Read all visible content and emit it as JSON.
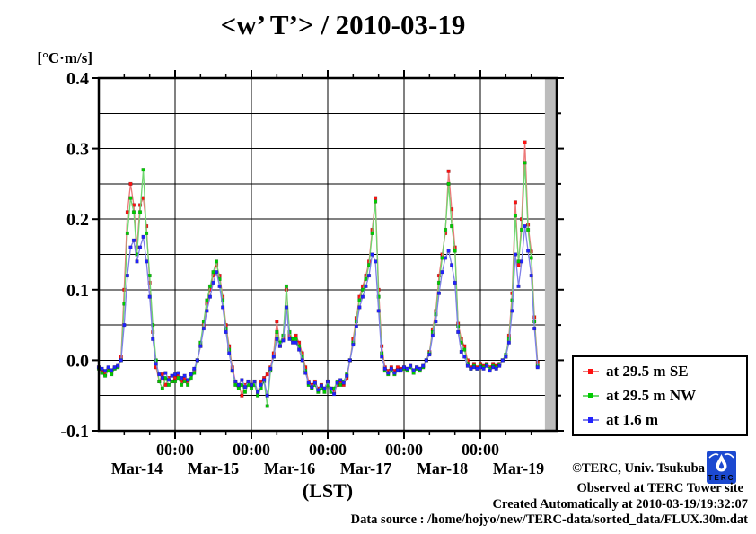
{
  "title": "<w’ T’> / 2010-03-19",
  "chart_data": {
    "type": "line",
    "title": "<w’ T’> / 2010-03-19",
    "unit_label": "[°C·m/s]",
    "xlabel": "(LST)",
    "ylim": [
      -0.1,
      0.4
    ],
    "y_tick_step": 0.1,
    "y_grid_step": 0.05,
    "y_tick_labels": [
      {
        "value": 0.4,
        "label": "0.4"
      },
      {
        "value": 0.3,
        "label": "0.3"
      },
      {
        "value": 0.2,
        "label": "0.2"
      },
      {
        "value": 0.1,
        "label": "0.1"
      },
      {
        "value": 0.0,
        "label": "0.0"
      },
      {
        "value": -0.1,
        "label": "-0.1"
      }
    ],
    "x_hour_span": 144,
    "x_start": "Mar-14 00:00",
    "x_step_hours": 1,
    "x_minor_tick_hours": 8,
    "x_time_ticks": [
      {
        "hour": 24,
        "label": "00:00"
      },
      {
        "hour": 48,
        "label": "00:00"
      },
      {
        "hour": 72,
        "label": "00:00"
      },
      {
        "hour": 96,
        "label": "00:00"
      },
      {
        "hour": 120,
        "label": "00:00"
      }
    ],
    "x_day_labels": [
      {
        "hour": 12,
        "label": "Mar-14"
      },
      {
        "hour": 36,
        "label": "Mar-15"
      },
      {
        "hour": 60,
        "label": "Mar-16"
      },
      {
        "hour": 84,
        "label": "Mar-17"
      },
      {
        "hour": 108,
        "label": "Mar-18"
      },
      {
        "hour": 132,
        "label": "Mar-19"
      }
    ],
    "shade_start_hour": 140.3,
    "shade_color": "#bcbcbc",
    "grid_color": "#000000",
    "series": [
      {
        "label": "at 29.5 m SE",
        "color": "#ff1111",
        "line_color": "#ec7878",
        "values": [
          -0.01,
          -0.015,
          -0.02,
          -0.012,
          -0.018,
          -0.01,
          -0.008,
          0.005,
          0.1,
          0.21,
          0.25,
          0.22,
          0.16,
          0.22,
          0.23,
          0.19,
          0.11,
          0.04,
          -0.01,
          -0.03,
          -0.02,
          -0.035,
          -0.025,
          -0.03,
          -0.025,
          -0.02,
          -0.03,
          -0.025,
          -0.03,
          -0.02,
          -0.015,
          0.0,
          0.02,
          0.05,
          0.08,
          0.1,
          0.12,
          0.135,
          0.12,
          0.09,
          0.05,
          0.02,
          -0.01,
          -0.03,
          -0.035,
          -0.05,
          -0.035,
          -0.03,
          -0.035,
          -0.03,
          -0.045,
          -0.03,
          -0.025,
          -0.02,
          -0.01,
          0.01,
          0.055,
          0.02,
          0.03,
          0.1,
          0.035,
          0.03,
          0.035,
          0.025,
          0.01,
          -0.01,
          -0.03,
          -0.035,
          -0.03,
          -0.04,
          -0.035,
          -0.04,
          -0.03,
          -0.04,
          -0.045,
          -0.035,
          -0.03,
          -0.035,
          -0.025,
          0.0,
          0.03,
          0.06,
          0.09,
          0.105,
          0.12,
          0.14,
          0.185,
          0.23,
          0.1,
          0.02,
          -0.01,
          -0.015,
          -0.01,
          -0.015,
          -0.01,
          -0.012,
          -0.01,
          -0.012,
          -0.008,
          -0.015,
          -0.01,
          -0.012,
          -0.008,
          0.0,
          0.012,
          0.044,
          0.07,
          0.12,
          0.15,
          0.18,
          0.268,
          0.214,
          0.16,
          0.052,
          0.03,
          0.02,
          0.0,
          -0.01,
          -0.005,
          -0.01,
          -0.005,
          -0.008,
          -0.005,
          -0.01,
          -0.005,
          -0.008,
          -0.005,
          0.0,
          0.005,
          0.035,
          0.095,
          0.224,
          0.135,
          0.2,
          0.309,
          0.192,
          0.154,
          0.061,
          -0.003
        ]
      },
      {
        "label": "at 29.5 m NW",
        "color": "#00cc00",
        "line_color": "#6fd66f",
        "values": [
          -0.012,
          -0.018,
          -0.022,
          -0.015,
          -0.02,
          -0.012,
          -0.01,
          0.0,
          0.08,
          0.18,
          0.23,
          0.21,
          0.15,
          0.21,
          0.27,
          0.18,
          0.12,
          0.05,
          0.0,
          -0.03,
          -0.04,
          -0.025,
          -0.035,
          -0.03,
          -0.03,
          -0.025,
          -0.035,
          -0.03,
          -0.035,
          -0.025,
          -0.018,
          0.0,
          0.025,
          0.055,
          0.085,
          0.105,
          0.125,
          0.14,
          0.115,
          0.085,
          0.045,
          0.015,
          -0.015,
          -0.035,
          -0.04,
          -0.035,
          -0.045,
          -0.035,
          -0.04,
          -0.035,
          -0.05,
          -0.04,
          -0.03,
          -0.065,
          -0.015,
          0.005,
          0.04,
          0.025,
          0.035,
          0.105,
          0.04,
          0.03,
          0.03,
          0.02,
          0.005,
          -0.015,
          -0.035,
          -0.04,
          -0.035,
          -0.045,
          -0.04,
          -0.045,
          -0.035,
          -0.045,
          -0.04,
          -0.03,
          -0.035,
          -0.03,
          -0.02,
          0.0,
          0.025,
          0.055,
          0.085,
          0.1,
          0.115,
          0.135,
          0.18,
          0.225,
          0.09,
          0.01,
          -0.015,
          -0.02,
          -0.015,
          -0.02,
          -0.015,
          -0.015,
          -0.012,
          -0.015,
          -0.01,
          -0.018,
          -0.012,
          -0.015,
          -0.01,
          0.0,
          0.01,
          0.04,
          0.065,
          0.11,
          0.145,
          0.185,
          0.25,
          0.19,
          0.155,
          0.048,
          0.025,
          0.015,
          -0.005,
          -0.012,
          -0.008,
          -0.012,
          -0.008,
          -0.01,
          -0.006,
          -0.012,
          -0.008,
          -0.01,
          -0.006,
          0.0,
          0.008,
          0.03,
          0.085,
          0.205,
          0.14,
          0.185,
          0.28,
          0.185,
          0.145,
          0.055,
          -0.008
        ]
      },
      {
        "label": "at 1.6 m",
        "color": "#2222ff",
        "line_color": "#7f7fe8",
        "values": [
          -0.01,
          -0.012,
          -0.015,
          -0.01,
          -0.014,
          -0.01,
          -0.008,
          0.0,
          0.05,
          0.12,
          0.16,
          0.17,
          0.14,
          0.16,
          0.175,
          0.14,
          0.09,
          0.03,
          -0.005,
          -0.02,
          -0.025,
          -0.018,
          -0.028,
          -0.022,
          -0.02,
          -0.018,
          -0.025,
          -0.022,
          -0.028,
          -0.02,
          -0.012,
          0.0,
          0.02,
          0.045,
          0.07,
          0.09,
          0.11,
          0.125,
          0.105,
          0.075,
          0.04,
          0.01,
          -0.015,
          -0.03,
          -0.035,
          -0.028,
          -0.038,
          -0.03,
          -0.035,
          -0.03,
          -0.045,
          -0.035,
          -0.028,
          -0.05,
          -0.012,
          0.005,
          0.03,
          0.02,
          0.028,
          0.075,
          0.03,
          0.025,
          0.025,
          0.015,
          0.0,
          -0.018,
          -0.032,
          -0.038,
          -0.032,
          -0.042,
          -0.036,
          -0.04,
          -0.03,
          -0.04,
          -0.048,
          -0.032,
          -0.028,
          -0.032,
          -0.022,
          0.0,
          0.022,
          0.048,
          0.075,
          0.09,
          0.105,
          0.12,
          0.15,
          0.14,
          0.07,
          0.005,
          -0.012,
          -0.018,
          -0.012,
          -0.018,
          -0.014,
          -0.014,
          -0.01,
          -0.012,
          -0.008,
          -0.014,
          -0.01,
          -0.012,
          -0.008,
          0.0,
          0.008,
          0.035,
          0.055,
          0.095,
          0.125,
          0.145,
          0.155,
          0.135,
          0.11,
          0.04,
          0.012,
          0.005,
          -0.008,
          -0.012,
          -0.01,
          -0.012,
          -0.01,
          -0.012,
          -0.008,
          -0.015,
          -0.01,
          -0.012,
          -0.008,
          0.0,
          0.005,
          0.025,
          0.07,
          0.15,
          0.105,
          0.14,
          0.19,
          0.155,
          0.12,
          0.045,
          -0.01
        ]
      }
    ]
  },
  "footer": {
    "copyright": "©TERC, Univ. Tsukuba",
    "observed": "Observed at TERC Tower site",
    "created": "Created Automatically at 2010-03-19/19:32:07",
    "datasource": "Data source : /home/hojyo/new/TERC-data/sorted_data/FLUX.30m.dat",
    "logo_text": "TERC"
  }
}
